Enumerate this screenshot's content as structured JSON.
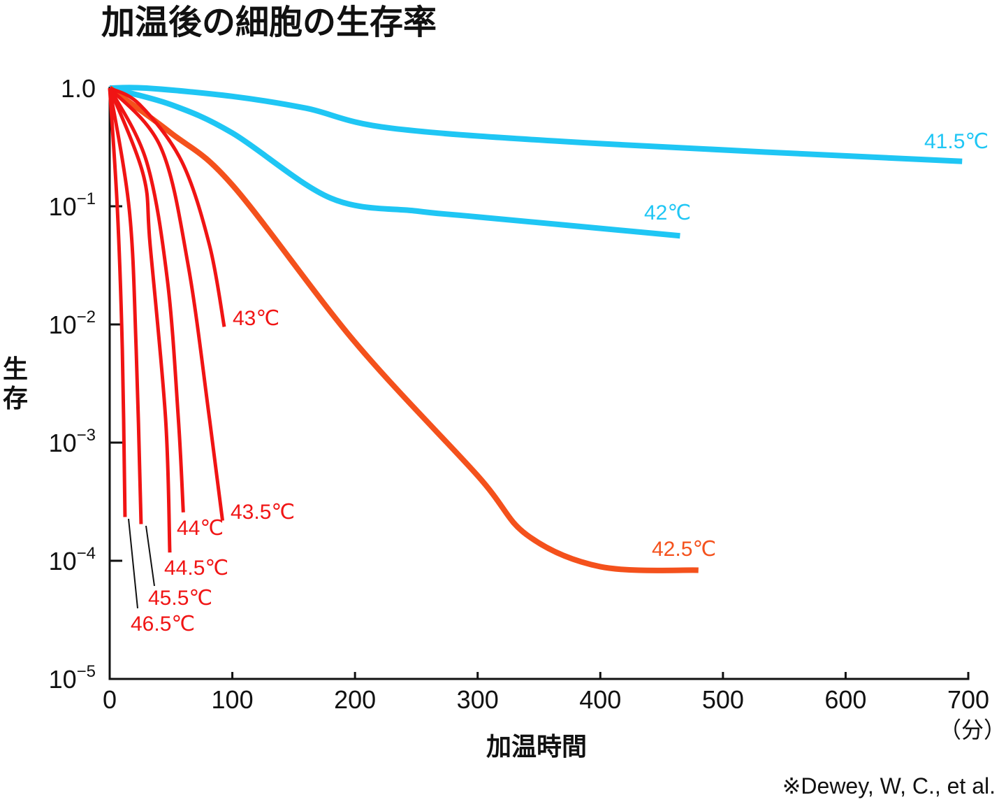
{
  "chart_data": {
    "type": "line",
    "title": "加温後の細胞の生存率",
    "xlabel": "加温時間",
    "xunit": "（分）",
    "ylabel": "生存",
    "yscale": "log",
    "xlim": [
      0,
      700
    ],
    "ylim": [
      1e-05,
      1.0
    ],
    "grid": false,
    "x_ticks": [
      "0",
      "100",
      "200",
      "300",
      "400",
      "500",
      "600",
      "700"
    ],
    "y_ticks": [
      {
        "base": "1.0",
        "exp": ""
      },
      {
        "base": "10",
        "exp": "−1"
      },
      {
        "base": "10",
        "exp": "−2"
      },
      {
        "base": "10",
        "exp": "−3"
      },
      {
        "base": "10",
        "exp": "−4"
      },
      {
        "base": "10",
        "exp": "−5"
      }
    ],
    "source": "※Dewey, W, C., et al.",
    "series": [
      {
        "name": "41.5℃",
        "color": "#1fc6f4",
        "x": [
          0,
          30,
          100,
          160,
          230,
          400,
          695
        ],
        "log10_y": [
          0,
          0,
          -0.07,
          -0.17,
          -0.34,
          -0.47,
          -0.62
        ]
      },
      {
        "name": "42℃",
        "color": "#1fc6f4",
        "x": [
          0,
          50,
          100,
          180,
          250,
          300,
          465
        ],
        "log10_y": [
          0,
          -0.14,
          -0.38,
          -0.93,
          -1.04,
          -1.09,
          -1.25
        ]
      },
      {
        "name": "42.5℃",
        "color": "#f4511c",
        "x": [
          0,
          50,
          100,
          200,
          300,
          340,
          400,
          480
        ],
        "log10_y": [
          0,
          -0.38,
          -0.82,
          -2.15,
          -3.28,
          -3.78,
          -4.05,
          -4.08
        ]
      },
      {
        "name": "43℃",
        "color": "#f01414",
        "x": [
          0,
          24.5,
          58.7,
          81.4,
          93.4
        ],
        "log10_y": [
          0,
          -0.14,
          -0.62,
          -1.33,
          -2.02
        ]
      },
      {
        "name": "43.5℃",
        "color": "#f01414",
        "x": [
          0,
          41.6,
          64,
          81.4,
          92
        ],
        "log10_y": [
          0,
          -0.5,
          -1.5,
          -2.8,
          -3.66
        ]
      },
      {
        "name": "44℃",
        "color": "#f01414",
        "x": [
          0,
          30,
          47,
          56,
          60
        ],
        "log10_y": [
          0,
          -0.62,
          -1.62,
          -2.8,
          -3.59
        ]
      },
      {
        "name": "44.5℃",
        "color": "#f01414",
        "x": [
          0,
          27.3,
          33,
          45.6,
          49
        ],
        "log10_y": [
          0,
          -0.73,
          -1.33,
          -2.8,
          -3.93
        ]
      },
      {
        "name": "45.5℃",
        "color": "#f01414",
        "x": [
          0,
          16,
          21.6,
          25.6
        ],
        "log10_y": [
          0,
          -1.03,
          -2.21,
          -3.69
        ]
      },
      {
        "name": "46.5℃",
        "color": "#f01414",
        "x": [
          0,
          6.3,
          10.3,
          12.5
        ],
        "log10_y": [
          0,
          -1.03,
          -2.21,
          -3.63
        ]
      }
    ]
  }
}
